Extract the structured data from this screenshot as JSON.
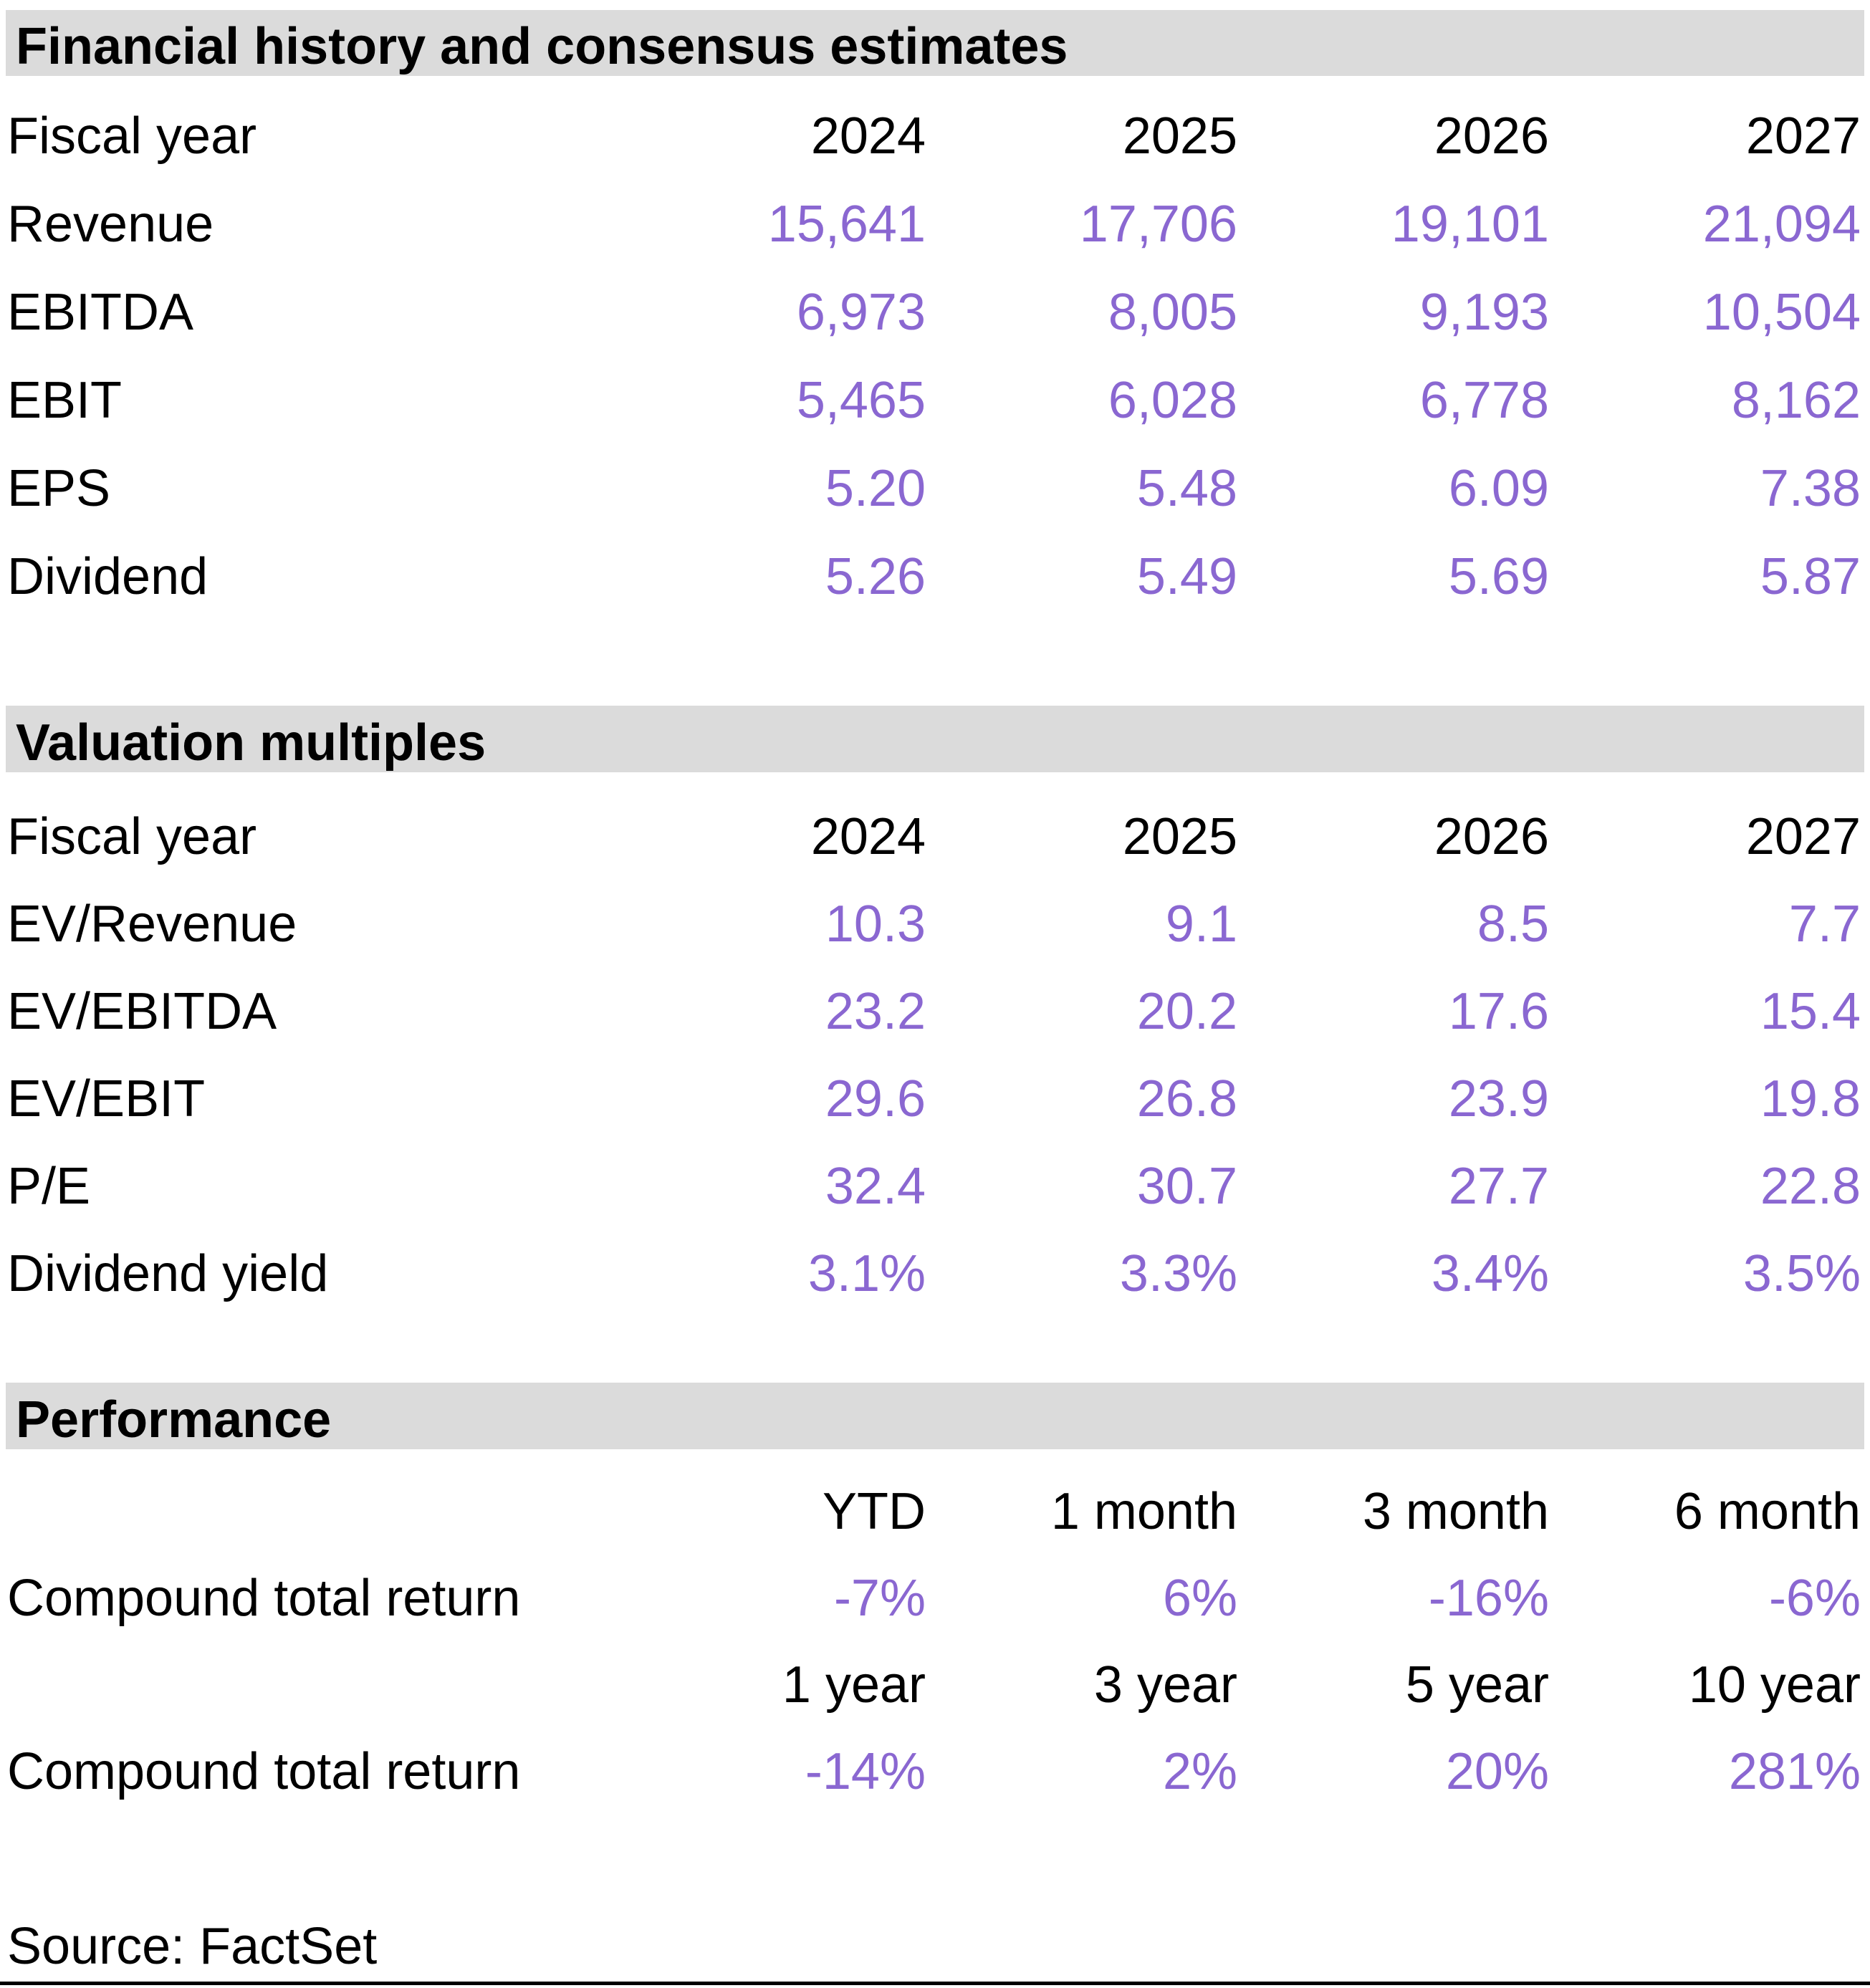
{
  "colors": {
    "accent_purple": "#8A67D1",
    "band_gray": "#DBDBDB",
    "text_black": "#000000"
  },
  "sections": [
    {
      "title": "Financial history and consensus estimates",
      "header": {
        "label": "Fiscal year",
        "columns": [
          "2024",
          "2025",
          "2026",
          "2027"
        ]
      },
      "rows": [
        {
          "label": "Revenue",
          "values": [
            "15,641",
            "17,706",
            "19,101",
            "21,094"
          ]
        },
        {
          "label": "EBITDA",
          "values": [
            "6,973",
            "8,005",
            "9,193",
            "10,504"
          ]
        },
        {
          "label": "EBIT",
          "values": [
            "5,465",
            "6,028",
            "6,778",
            "8,162"
          ]
        },
        {
          "label": "EPS",
          "values": [
            "5.20",
            "5.48",
            "6.09",
            "7.38"
          ]
        },
        {
          "label": "Dividend",
          "values": [
            "5.26",
            "5.49",
            "5.69",
            "5.87"
          ]
        }
      ]
    },
    {
      "title": "Valuation multiples",
      "header": {
        "label": "Fiscal year",
        "columns": [
          "2024",
          "2025",
          "2026",
          "2027"
        ]
      },
      "rows": [
        {
          "label": "EV/Revenue",
          "values": [
            "10.3",
            "9.1",
            "8.5",
            "7.7"
          ]
        },
        {
          "label": "EV/EBITDA",
          "values": [
            "23.2",
            "20.2",
            "17.6",
            "15.4"
          ]
        },
        {
          "label": "EV/EBIT",
          "values": [
            "29.6",
            "26.8",
            "23.9",
            "19.8"
          ]
        },
        {
          "label": "P/E",
          "values": [
            "32.4",
            "30.7",
            "27.7",
            "22.8"
          ]
        },
        {
          "label": "Dividend yield",
          "values": [
            "3.1%",
            "3.3%",
            "3.4%",
            "3.5%"
          ]
        }
      ]
    },
    {
      "title": "Performance",
      "groups": [
        {
          "columns": [
            "YTD",
            "1 month",
            "3 month",
            "6 month"
          ],
          "row": {
            "label": "Compound total return",
            "values": [
              "-7%",
              "6%",
              "-16%",
              "-6%"
            ]
          }
        },
        {
          "columns": [
            "1 year",
            "3 year",
            "5 year",
            "10 year"
          ],
          "row": {
            "label": "Compound total return",
            "values": [
              "-14%",
              "2%",
              "20%",
              "281%"
            ]
          }
        }
      ]
    }
  ],
  "source_note": "Source: FactSet"
}
